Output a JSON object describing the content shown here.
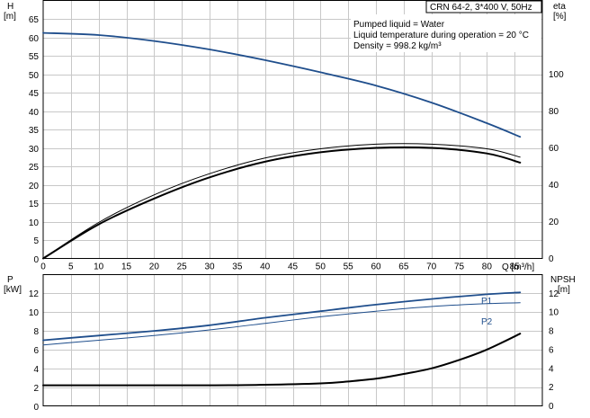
{
  "chart_data": [
    {
      "type": "line",
      "panel": "top",
      "title_box": "CRN 64-2, 3*400 V, 50Hz",
      "annotations": [
        "Pumped liquid = Water",
        "Liquid temperature during operation = 20 °C",
        "Density = 998.2 kg/m³"
      ],
      "xlabel": "Q [m³/h]",
      "xlim": [
        0,
        90
      ],
      "xticks": [
        "0",
        "5",
        "10",
        "15",
        "20",
        "25",
        "30",
        "35",
        "40",
        "45",
        "50",
        "55",
        "60",
        "65",
        "70",
        "75",
        "80",
        "85"
      ],
      "ylabel_left": {
        "name": "H",
        "unit": "[m]"
      },
      "ylim_left": [
        0,
        70
      ],
      "yticks_left": [
        "0",
        "5",
        "10",
        "15",
        "20",
        "25",
        "30",
        "35",
        "40",
        "45",
        "50",
        "55",
        "60",
        "65"
      ],
      "ylabel_right": {
        "name": "eta",
        "unit": "[%]"
      },
      "ylim_right": [
        0,
        140
      ],
      "yticks_right": [
        "0",
        "20",
        "40",
        "60",
        "80",
        "100"
      ],
      "grid": true,
      "series": [
        {
          "id": "H",
          "axis": "left",
          "color": "#1f4e8c",
          "x": [
            0,
            10,
            20,
            30,
            40,
            50,
            60,
            70,
            80,
            86
          ],
          "values": [
            61.2,
            60.6,
            59.0,
            56.7,
            53.8,
            50.5,
            46.9,
            42.3,
            36.7,
            33.0
          ]
        },
        {
          "id": "eta_1",
          "axis": "right",
          "color": "#000000",
          "x": [
            0,
            10,
            20,
            30,
            40,
            50,
            60,
            70,
            80,
            86
          ],
          "values": [
            0,
            18.5,
            32.5,
            44.0,
            52.5,
            57.6,
            60.0,
            60.0,
            57.0,
            52.0
          ]
        },
        {
          "id": "eta_2",
          "axis": "right",
          "color": "#000000",
          "x": [
            0,
            10,
            20,
            30,
            40,
            50,
            60,
            70,
            80,
            86
          ],
          "values": [
            0,
            19.5,
            34.5,
            46.0,
            54.5,
            59.5,
            62.0,
            62.0,
            59.5,
            55.0
          ]
        }
      ]
    },
    {
      "type": "line",
      "panel": "bottom",
      "xlim": [
        0,
        90
      ],
      "ylabel_left": {
        "name": "P",
        "unit": "[kW]"
      },
      "ylim_left": [
        0,
        14
      ],
      "yticks_left": [
        "0",
        "2",
        "4",
        "6",
        "8",
        "10",
        "12"
      ],
      "ylabel_right": {
        "name": "NPSH",
        "unit": "[m]"
      },
      "ylim_right": [
        0,
        14
      ],
      "yticks_right": [
        "0",
        "2",
        "4",
        "6",
        "8",
        "10",
        "12"
      ],
      "grid": true,
      "series": [
        {
          "id": "P1",
          "name": "P1",
          "axis": "left",
          "color": "#1f4e8c",
          "x": [
            0,
            10,
            20,
            30,
            40,
            50,
            60,
            70,
            80,
            86
          ],
          "values": [
            7.0,
            7.5,
            8.0,
            8.6,
            9.4,
            10.1,
            10.8,
            11.4,
            11.9,
            12.1
          ]
        },
        {
          "id": "P2",
          "name": "P2",
          "axis": "left",
          "color": "#1f4e8c",
          "x": [
            0,
            10,
            20,
            30,
            40,
            50,
            60,
            70,
            80,
            86
          ],
          "values": [
            6.5,
            7.0,
            7.5,
            8.1,
            8.8,
            9.5,
            10.1,
            10.6,
            10.9,
            11.0
          ]
        },
        {
          "id": "NPSH",
          "axis": "right",
          "color": "#000000",
          "x": [
            0,
            30,
            40,
            50,
            55,
            60,
            65,
            70,
            75,
            80,
            86
          ],
          "values": [
            2.2,
            2.2,
            2.25,
            2.4,
            2.6,
            2.9,
            3.4,
            4.0,
            4.9,
            6.0,
            7.7
          ]
        }
      ]
    }
  ],
  "colors": {
    "grid": "#c8c8c8",
    "frame": "#000000",
    "curve_blue": "#1f4e8c",
    "curve_black": "#000000",
    "label_blue": "#1f4e8c"
  }
}
